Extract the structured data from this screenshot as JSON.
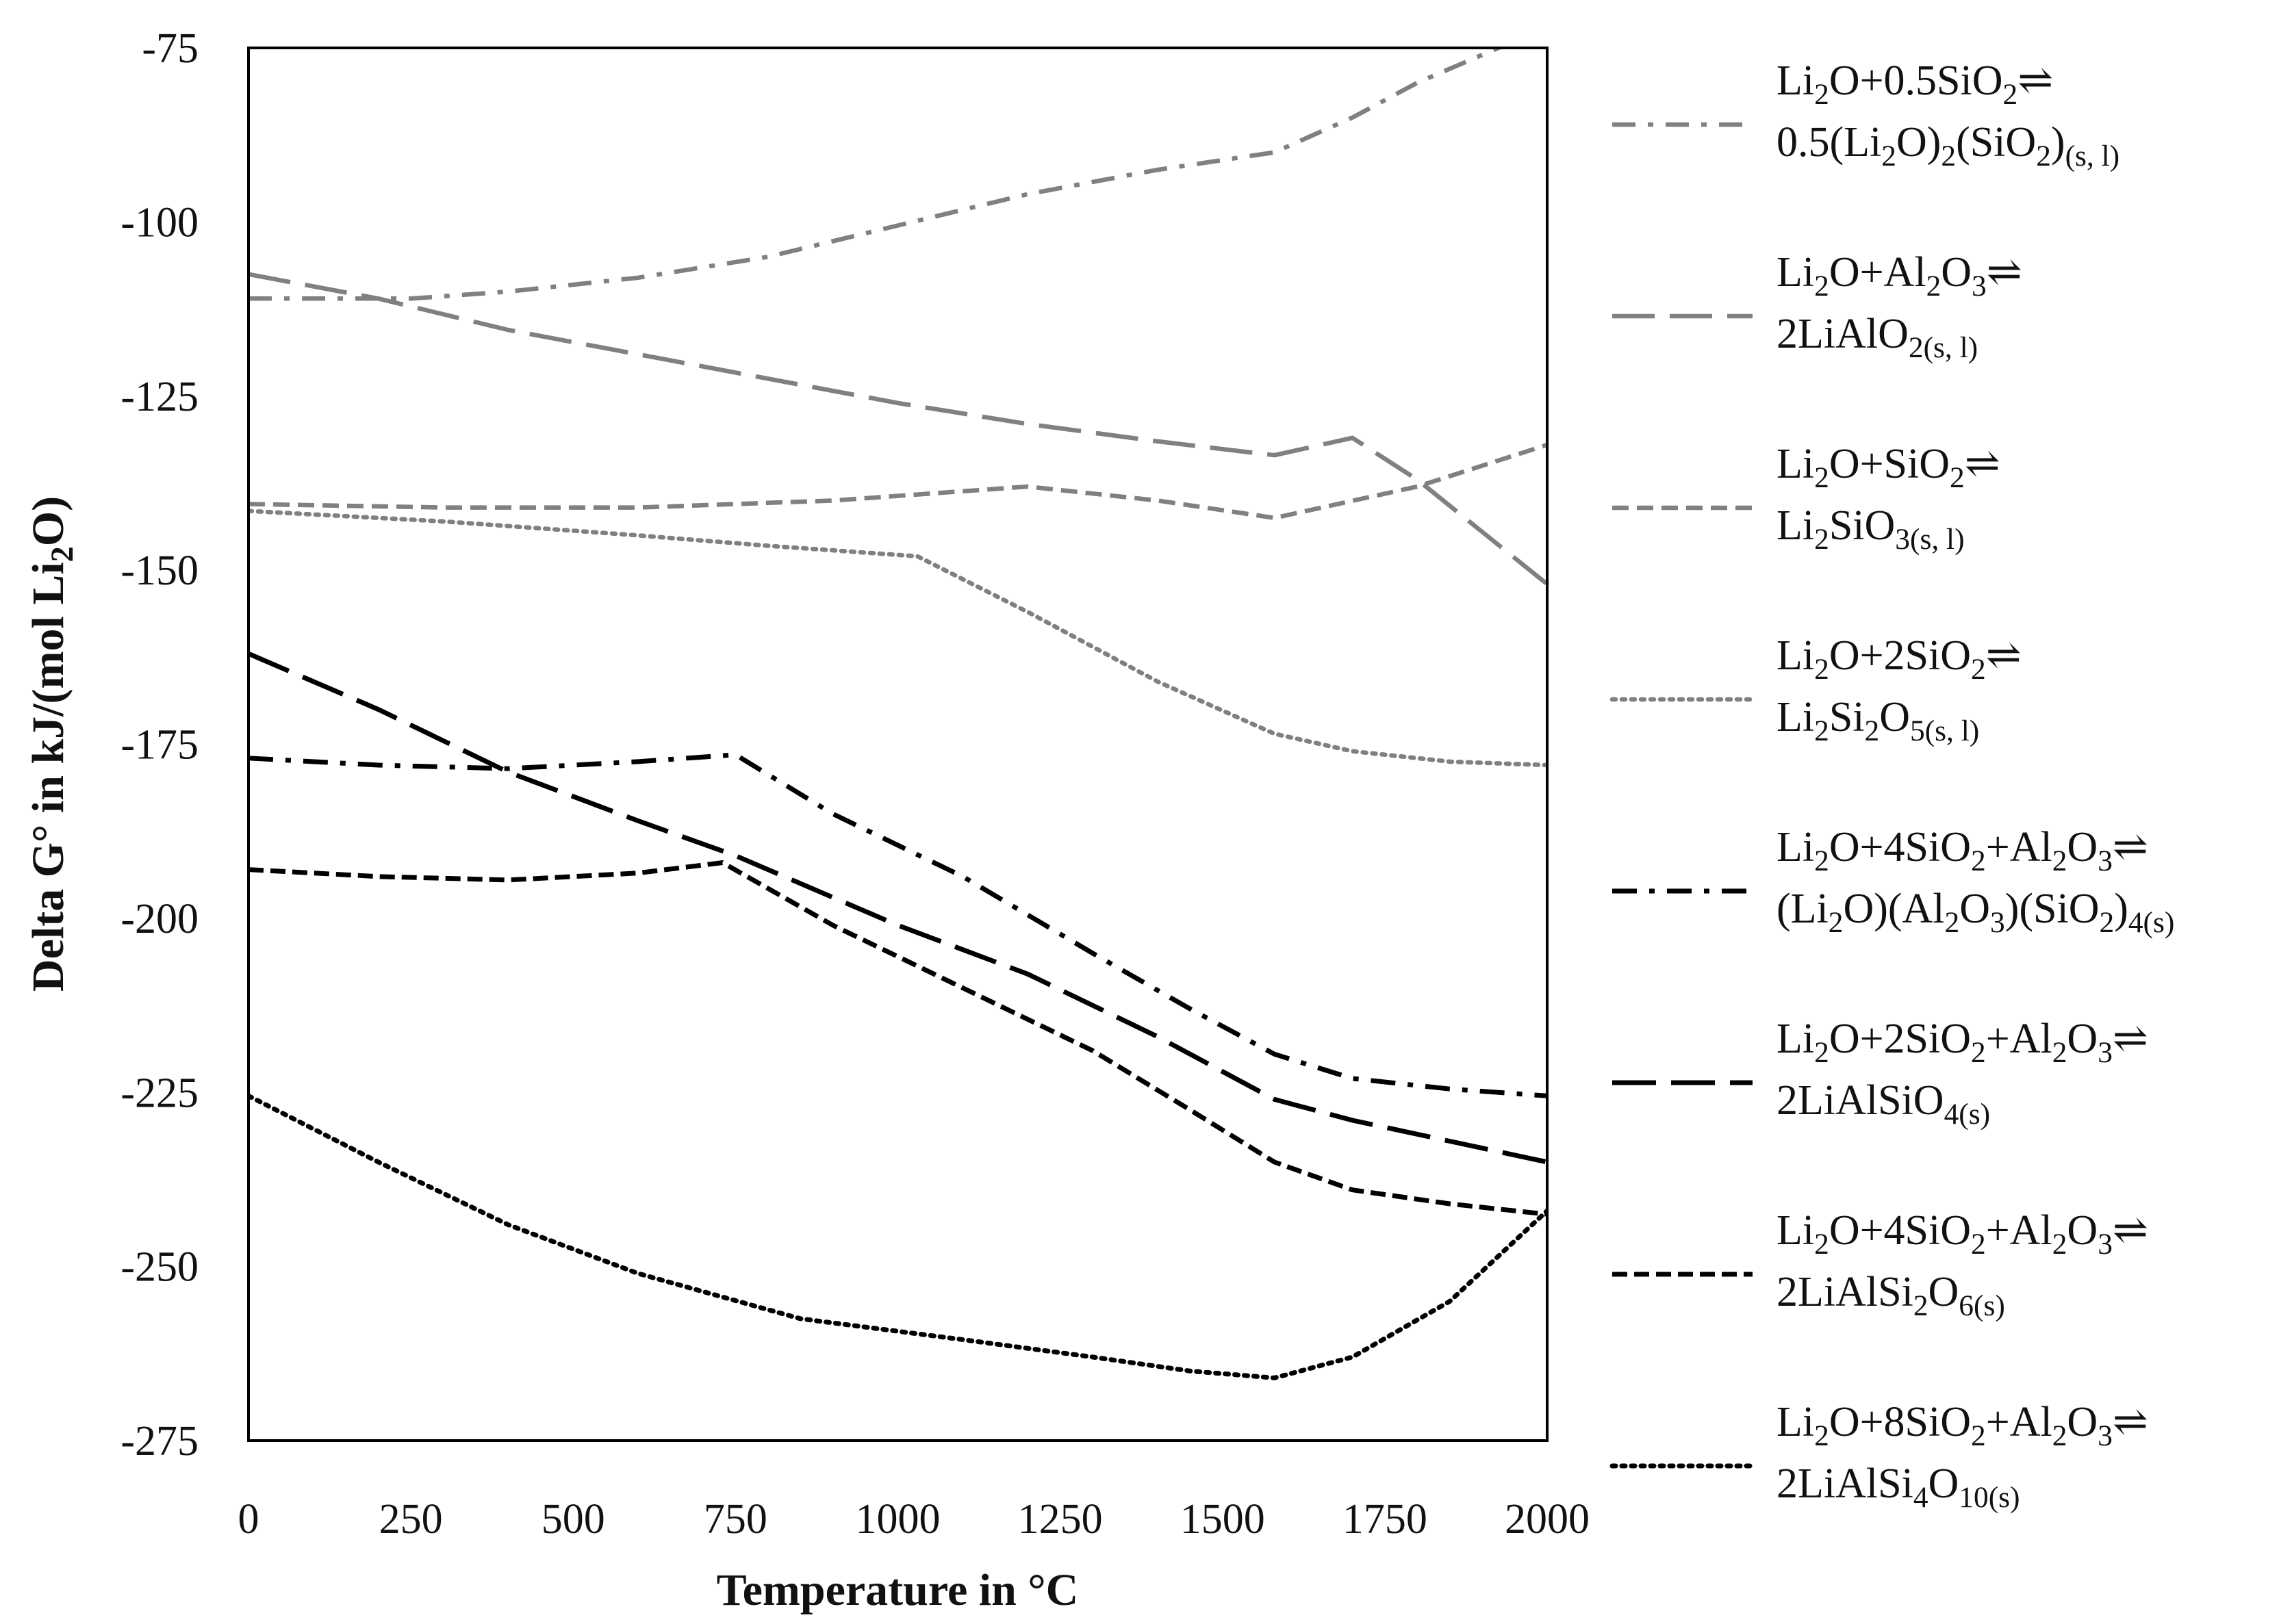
{
  "chart_data": {
    "type": "line",
    "title": "",
    "xlabel": "Temperature in °C",
    "ylabel": "Delta G° in kJ/(mol Li2O)",
    "xlim": [
      0,
      2000
    ],
    "ylim": [
      -275,
      -75
    ],
    "xticks": [
      0,
      250,
      500,
      750,
      1000,
      1250,
      1500,
      1750,
      2000
    ],
    "yticks": [
      -75,
      -100,
      -125,
      -150,
      -175,
      -200,
      -225,
      -250,
      -275
    ],
    "grid": false,
    "legend_position": "right",
    "series": [
      {
        "name": "Li2O+0.5SiO2⇌0.5(Li2O)2(SiO2)(s, l)",
        "color": "#808080",
        "dash": "dashdot",
        "width": "thin",
        "points": [
          [
            0,
            -111
          ],
          [
            250,
            -111
          ],
          [
            400,
            -110
          ],
          [
            600,
            -108
          ],
          [
            800,
            -105
          ],
          [
            1000,
            -100.5
          ],
          [
            1200,
            -96
          ],
          [
            1400,
            -92.5
          ],
          [
            1580,
            -90
          ],
          [
            1700,
            -85
          ],
          [
            1800,
            -80
          ],
          [
            1950,
            -74
          ]
        ]
      },
      {
        "name": "Li2O+Al2O3⇌2LiAlO2(s, l)",
        "color": "#808080",
        "dash": "longdash",
        "width": "thin",
        "points": [
          [
            0,
            -107.5
          ],
          [
            200,
            -111
          ],
          [
            400,
            -115.5
          ],
          [
            600,
            -119
          ],
          [
            800,
            -122.5
          ],
          [
            1000,
            -126
          ],
          [
            1200,
            -129
          ],
          [
            1400,
            -131.5
          ],
          [
            1580,
            -133.5
          ],
          [
            1700,
            -131
          ],
          [
            1800,
            -137
          ],
          [
            2000,
            -152
          ]
        ]
      },
      {
        "name": "Li2O+SiO2⇌Li2SiO3(s, l)",
        "color": "#808080",
        "dash": "dash",
        "width": "thin",
        "points": [
          [
            0,
            -140.5
          ],
          [
            300,
            -141
          ],
          [
            600,
            -141
          ],
          [
            900,
            -140
          ],
          [
            1200,
            -138
          ],
          [
            1400,
            -140
          ],
          [
            1580,
            -142.5
          ],
          [
            1800,
            -138
          ],
          [
            2000,
            -132
          ]
        ]
      },
      {
        "name": "Li2O+2SiO2⇌Li2Si2O5(s, l)",
        "color": "#808080",
        "dash": "dot",
        "width": "thin",
        "points": [
          [
            0,
            -141.5
          ],
          [
            300,
            -143
          ],
          [
            600,
            -145
          ],
          [
            800,
            -146.5
          ],
          [
            1030,
            -148
          ],
          [
            1200,
            -156
          ],
          [
            1400,
            -166
          ],
          [
            1580,
            -173.5
          ],
          [
            1700,
            -176
          ],
          [
            1850,
            -177.5
          ],
          [
            2000,
            -178
          ]
        ]
      },
      {
        "name": "Li2O+4SiO2+Al2O3⇌(Li2O)(Al2O3)(SiO2)4(s)",
        "color": "#000000",
        "dash": "dashdot",
        "width": "thick",
        "points": [
          [
            0,
            -177
          ],
          [
            200,
            -178
          ],
          [
            400,
            -178.5
          ],
          [
            600,
            -177.5
          ],
          [
            750,
            -176.5
          ],
          [
            900,
            -185
          ],
          [
            1100,
            -194
          ],
          [
            1300,
            -205
          ],
          [
            1450,
            -213
          ],
          [
            1580,
            -219.5
          ],
          [
            1700,
            -223
          ],
          [
            1850,
            -224.5
          ],
          [
            2000,
            -225.5
          ]
        ]
      },
      {
        "name": "Li2O+2SiO2+Al2O3⇌2LiAlSiO4(s)",
        "color": "#000000",
        "dash": "longdash",
        "width": "thick",
        "points": [
          [
            0,
            -162
          ],
          [
            200,
            -170
          ],
          [
            400,
            -179
          ],
          [
            600,
            -186
          ],
          [
            750,
            -191
          ],
          [
            1000,
            -201
          ],
          [
            1200,
            -208
          ],
          [
            1400,
            -217
          ],
          [
            1580,
            -226
          ],
          [
            1700,
            -229
          ],
          [
            1850,
            -232
          ],
          [
            2000,
            -235
          ]
        ]
      },
      {
        "name": "Li2O+4SiO2+Al2O3⇌2LiAlSi2O6(s)",
        "color": "#000000",
        "dash": "dash",
        "width": "thick",
        "points": [
          [
            0,
            -193
          ],
          [
            200,
            -194
          ],
          [
            400,
            -194.5
          ],
          [
            600,
            -193.5
          ],
          [
            730,
            -192
          ],
          [
            900,
            -201
          ],
          [
            1100,
            -210
          ],
          [
            1300,
            -219
          ],
          [
            1450,
            -227.5
          ],
          [
            1580,
            -235
          ],
          [
            1700,
            -239
          ],
          [
            1850,
            -241
          ],
          [
            2000,
            -242.5
          ]
        ]
      },
      {
        "name": "Li2O+8SiO2+Al2O3⇌2LiAlSi4O10(s)",
        "color": "#000000",
        "dash": "dot",
        "width": "thick",
        "points": [
          [
            0,
            -225.5
          ],
          [
            200,
            -235
          ],
          [
            400,
            -244
          ],
          [
            600,
            -251
          ],
          [
            850,
            -257.5
          ],
          [
            1100,
            -260.5
          ],
          [
            1300,
            -263
          ],
          [
            1450,
            -265
          ],
          [
            1580,
            -266
          ],
          [
            1700,
            -263
          ],
          [
            1850,
            -255
          ],
          [
            2000,
            -242
          ]
        ]
      }
    ]
  },
  "legend": [
    {
      "line1": [
        {
          "t": "Li"
        },
        {
          "t": "2",
          "sub": true
        },
        {
          "t": "O+0.5SiO"
        },
        {
          "t": "2",
          "sub": true
        },
        {
          "t": "⇌"
        }
      ],
      "line2": [
        {
          "t": "0.5(Li"
        },
        {
          "t": "2",
          "sub": true
        },
        {
          "t": "O)"
        },
        {
          "t": "2",
          "sub": true
        },
        {
          "t": "(SiO"
        },
        {
          "t": "2",
          "sub": true
        },
        {
          "t": ")"
        },
        {
          "t": "(s, l)",
          "sub": true
        }
      ]
    },
    {
      "line1": [
        {
          "t": "Li"
        },
        {
          "t": "2",
          "sub": true
        },
        {
          "t": "O+Al"
        },
        {
          "t": "2",
          "sub": true
        },
        {
          "t": "O"
        },
        {
          "t": "3",
          "sub": true
        },
        {
          "t": "⇌"
        }
      ],
      "line2": [
        {
          "t": "2LiAlO"
        },
        {
          "t": "2(s, l)",
          "sub": true
        }
      ]
    },
    {
      "line1": [
        {
          "t": "Li"
        },
        {
          "t": "2",
          "sub": true
        },
        {
          "t": "O+SiO"
        },
        {
          "t": "2",
          "sub": true
        },
        {
          "t": "⇌"
        }
      ],
      "line2": [
        {
          "t": "Li"
        },
        {
          "t": "2",
          "sub": true
        },
        {
          "t": "SiO"
        },
        {
          "t": "3(s, l)",
          "sub": true
        }
      ]
    },
    {
      "line1": [
        {
          "t": "Li"
        },
        {
          "t": "2",
          "sub": true
        },
        {
          "t": "O+2SiO"
        },
        {
          "t": "2",
          "sub": true
        },
        {
          "t": "⇌"
        }
      ],
      "line2": [
        {
          "t": "Li"
        },
        {
          "t": "2",
          "sub": true
        },
        {
          "t": "Si"
        },
        {
          "t": "2",
          "sub": true
        },
        {
          "t": "O"
        },
        {
          "t": "5(s, l)",
          "sub": true
        }
      ]
    },
    {
      "line1": [
        {
          "t": "Li"
        },
        {
          "t": "2",
          "sub": true
        },
        {
          "t": "O+4SiO"
        },
        {
          "t": "2",
          "sub": true
        },
        {
          "t": "+Al"
        },
        {
          "t": "2",
          "sub": true
        },
        {
          "t": "O"
        },
        {
          "t": "3",
          "sub": true
        },
        {
          "t": "⇌"
        }
      ],
      "line2": [
        {
          "t": "(Li"
        },
        {
          "t": "2",
          "sub": true
        },
        {
          "t": "O)(Al"
        },
        {
          "t": "2",
          "sub": true
        },
        {
          "t": "O"
        },
        {
          "t": "3",
          "sub": true
        },
        {
          "t": ")(SiO"
        },
        {
          "t": "2",
          "sub": true
        },
        {
          "t": ")"
        },
        {
          "t": "4(s)",
          "sub": true
        }
      ]
    },
    {
      "line1": [
        {
          "t": "Li"
        },
        {
          "t": "2",
          "sub": true
        },
        {
          "t": "O+2SiO"
        },
        {
          "t": "2",
          "sub": true
        },
        {
          "t": "+Al"
        },
        {
          "t": "2",
          "sub": true
        },
        {
          "t": "O"
        },
        {
          "t": "3",
          "sub": true
        },
        {
          "t": "⇌"
        }
      ],
      "line2": [
        {
          "t": "2LiAlSiO"
        },
        {
          "t": "4(s)",
          "sub": true
        }
      ]
    },
    {
      "line1": [
        {
          "t": "Li"
        },
        {
          "t": "2",
          "sub": true
        },
        {
          "t": "O+4SiO"
        },
        {
          "t": "2",
          "sub": true
        },
        {
          "t": "+Al"
        },
        {
          "t": "2",
          "sub": true
        },
        {
          "t": "O"
        },
        {
          "t": "3",
          "sub": true
        },
        {
          "t": "⇌"
        }
      ],
      "line2": [
        {
          "t": "2LiAlSi"
        },
        {
          "t": "2",
          "sub": true
        },
        {
          "t": "O"
        },
        {
          "t": "6(s)",
          "sub": true
        }
      ]
    },
    {
      "line1": [
        {
          "t": "Li"
        },
        {
          "t": "2",
          "sub": true
        },
        {
          "t": "O+8SiO"
        },
        {
          "t": "2",
          "sub": true
        },
        {
          "t": "+Al"
        },
        {
          "t": "2",
          "sub": true
        },
        {
          "t": "O"
        },
        {
          "t": "3",
          "sub": true
        },
        {
          "t": "⇌"
        }
      ],
      "line2": [
        {
          "t": "2LiAlSi"
        },
        {
          "t": "4",
          "sub": true
        },
        {
          "t": "O"
        },
        {
          "t": "10(s)",
          "sub": true
        }
      ]
    }
  ],
  "ylabel_rich": [
    {
      "t": "Delta G° in kJ/(mol Li"
    },
    {
      "t": "2",
      "sub": true
    },
    {
      "t": "O)"
    }
  ]
}
